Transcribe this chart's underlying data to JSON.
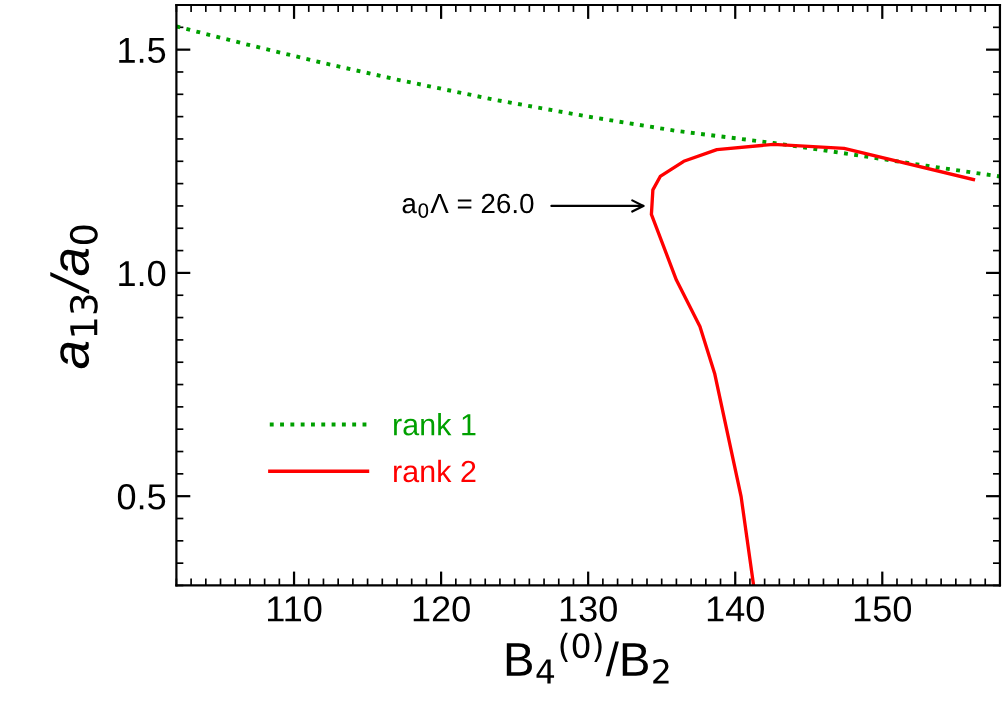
{
  "chart_data": {
    "type": "line",
    "xlabel": "B$_{4}$$^{(0)}$/B$_{2}$",
    "ylabel": "a$_{13}$/a$_{0}$",
    "xlim": [
      102,
      158
    ],
    "ylim": [
      0.3,
      1.6
    ],
    "xticks": [
      110,
      120,
      130,
      140,
      150
    ],
    "yticks": [
      0.5,
      {
        "value": 1.0,
        "label": "1.0"
      },
      1.5
    ],
    "grid": false,
    "legend": "lower left",
    "marker": "none",
    "series": [
      {
        "name": "rank 1",
        "color": "#00a000",
        "line_style": "dotted",
        "x": [
          102,
          107,
          112,
          117,
          123.6,
          130,
          136,
          142.6,
          148,
          153,
          158
        ],
        "values": [
          1.552,
          1.51,
          1.47,
          1.433,
          1.388,
          1.35,
          1.318,
          1.291,
          1.265,
          1.24,
          1.216
        ]
      },
      {
        "name": "rank 2",
        "color": "#ff0000",
        "line_style": "solid",
        "x": [
          156.2,
          147.4,
          142.6,
          138.75,
          136.5,
          134.9,
          134.4,
          134.3,
          136.0,
          137.6,
          138.6,
          140.4,
          141.25
        ],
        "values": [
          1.209,
          1.279,
          1.288,
          1.276,
          1.25,
          1.216,
          1.186,
          1.131,
          0.984,
          0.88,
          0.775,
          0.499,
          0.3
        ]
      }
    ],
    "annotations": [
      {
        "text": "a$_{0}$Λ = 26.0",
        "x": 134.3,
        "y": 1.15
      }
    ]
  }
}
